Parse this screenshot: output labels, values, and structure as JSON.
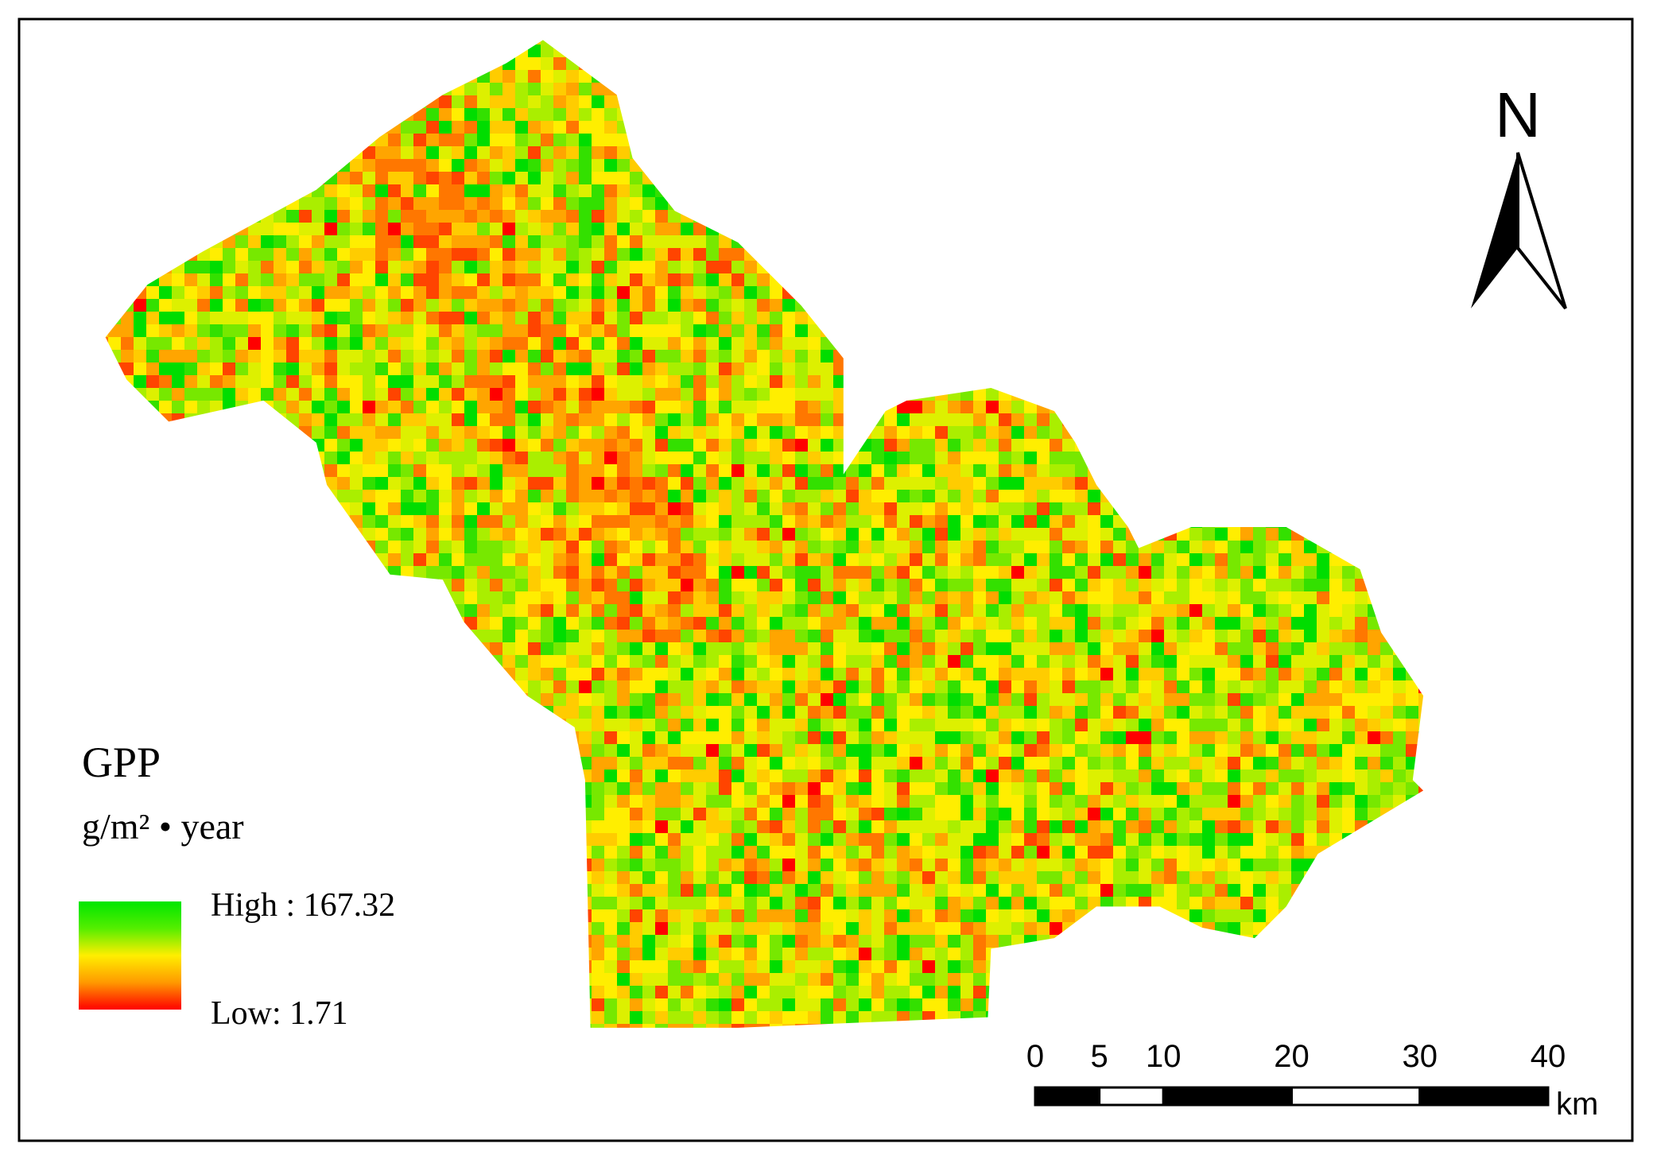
{
  "legend": {
    "title": "GPP",
    "unit": "g/m² • year",
    "high": "High : 167.32",
    "low": "Low: 1.71"
  },
  "north_arrow": {
    "label": "N"
  },
  "scale_bar": {
    "ticks": [
      0,
      5,
      10,
      20,
      30,
      40
    ],
    "unit": "km"
  }
}
